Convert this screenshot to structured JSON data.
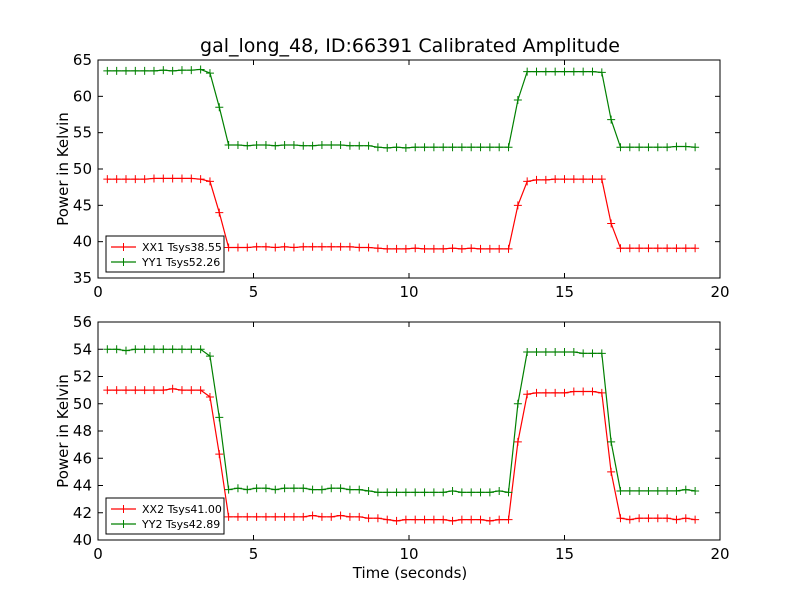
{
  "figure": {
    "title": "gal_long_48, ID:66391 Calibrated Amplitude",
    "xlabel": "Time (seconds)"
  },
  "chart_data": [
    {
      "type": "line",
      "title": "gal_long_48, ID:66391 Calibrated Amplitude",
      "xlabel": "",
      "ylabel": "Power in Kelvin",
      "xlim": [
        0,
        20
      ],
      "ylim": [
        35,
        65
      ],
      "xticks": [
        0,
        5,
        10,
        15,
        20
      ],
      "yticks": [
        35,
        40,
        45,
        50,
        55,
        60,
        65
      ],
      "legend": "lower-left",
      "grid": false,
      "x": [
        0.3,
        0.6,
        0.9,
        1.2,
        1.5,
        1.8,
        2.1,
        2.4,
        2.7,
        3.0,
        3.3,
        3.6,
        3.9,
        4.2,
        4.5,
        4.8,
        5.1,
        5.4,
        5.7,
        6.0,
        6.3,
        6.6,
        6.9,
        7.2,
        7.5,
        7.8,
        8.1,
        8.4,
        8.7,
        9.0,
        9.3,
        9.6,
        9.9,
        10.2,
        10.5,
        10.8,
        11.1,
        11.4,
        11.7,
        12.0,
        12.3,
        12.6,
        12.9,
        13.2,
        13.5,
        13.8,
        14.1,
        14.4,
        14.7,
        15.0,
        15.3,
        15.6,
        15.9,
        16.2,
        16.5,
        16.8,
        17.1,
        17.4,
        17.7,
        18.0,
        18.3,
        18.6,
        18.9,
        19.2
      ],
      "series": [
        {
          "name": "XX1 Tsys38.55",
          "color": "#ff0000",
          "values": [
            48.6,
            48.6,
            48.6,
            48.6,
            48.6,
            48.7,
            48.7,
            48.7,
            48.7,
            48.7,
            48.6,
            48.3,
            44.0,
            39.2,
            39.2,
            39.2,
            39.3,
            39.3,
            39.2,
            39.3,
            39.2,
            39.3,
            39.3,
            39.3,
            39.3,
            39.3,
            39.3,
            39.2,
            39.2,
            39.1,
            39.0,
            39.0,
            39.0,
            39.1,
            39.0,
            39.0,
            39.0,
            39.1,
            39.0,
            39.1,
            39.0,
            39.0,
            39.0,
            39.0,
            45.0,
            48.3,
            48.5,
            48.5,
            48.6,
            48.6,
            48.6,
            48.6,
            48.6,
            48.6,
            42.5,
            39.1,
            39.1,
            39.1,
            39.1,
            39.1,
            39.1,
            39.1,
            39.1,
            39.1
          ]
        },
        {
          "name": "YY1 Tsys52.26",
          "color": "#008000",
          "values": [
            63.5,
            63.5,
            63.5,
            63.5,
            63.5,
            63.5,
            63.6,
            63.5,
            63.6,
            63.6,
            63.7,
            63.2,
            58.5,
            53.3,
            53.3,
            53.2,
            53.3,
            53.3,
            53.2,
            53.3,
            53.3,
            53.2,
            53.2,
            53.3,
            53.3,
            53.3,
            53.2,
            53.2,
            53.2,
            53.0,
            52.9,
            53.0,
            52.9,
            53.0,
            53.0,
            53.0,
            53.0,
            53.0,
            53.0,
            53.0,
            53.0,
            53.0,
            53.0,
            53.0,
            59.5,
            63.4,
            63.4,
            63.4,
            63.4,
            63.4,
            63.4,
            63.4,
            63.4,
            63.3,
            56.8,
            53.0,
            53.0,
            53.0,
            53.0,
            53.0,
            53.0,
            53.1,
            53.1,
            53.0
          ]
        }
      ]
    },
    {
      "type": "line",
      "title": "",
      "xlabel": "Time (seconds)",
      "ylabel": "Power in Kelvin",
      "xlim": [
        0,
        20
      ],
      "ylim": [
        40,
        56
      ],
      "xticks": [
        0,
        5,
        10,
        15,
        20
      ],
      "yticks": [
        40,
        42,
        44,
        46,
        48,
        50,
        52,
        54,
        56
      ],
      "legend": "lower-left",
      "grid": false,
      "x": [
        0.3,
        0.6,
        0.9,
        1.2,
        1.5,
        1.8,
        2.1,
        2.4,
        2.7,
        3.0,
        3.3,
        3.6,
        3.9,
        4.2,
        4.5,
        4.8,
        5.1,
        5.4,
        5.7,
        6.0,
        6.3,
        6.6,
        6.9,
        7.2,
        7.5,
        7.8,
        8.1,
        8.4,
        8.7,
        9.0,
        9.3,
        9.6,
        9.9,
        10.2,
        10.5,
        10.8,
        11.1,
        11.4,
        11.7,
        12.0,
        12.3,
        12.6,
        12.9,
        13.2,
        13.5,
        13.8,
        14.1,
        14.4,
        14.7,
        15.0,
        15.3,
        15.6,
        15.9,
        16.2,
        16.5,
        16.8,
        17.1,
        17.4,
        17.7,
        18.0,
        18.3,
        18.6,
        18.9,
        19.2
      ],
      "series": [
        {
          "name": "XX2 Tsys41.00",
          "color": "#ff0000",
          "values": [
            51.0,
            51.0,
            51.0,
            51.0,
            51.0,
            51.0,
            51.0,
            51.1,
            51.0,
            51.0,
            51.0,
            50.5,
            46.3,
            41.7,
            41.7,
            41.7,
            41.7,
            41.7,
            41.7,
            41.7,
            41.7,
            41.7,
            41.8,
            41.7,
            41.7,
            41.8,
            41.7,
            41.7,
            41.6,
            41.6,
            41.5,
            41.4,
            41.5,
            41.5,
            41.5,
            41.5,
            41.5,
            41.4,
            41.5,
            41.5,
            41.5,
            41.4,
            41.5,
            41.5,
            47.2,
            50.7,
            50.8,
            50.8,
            50.8,
            50.8,
            50.9,
            50.9,
            50.9,
            50.8,
            45.0,
            41.6,
            41.5,
            41.6,
            41.6,
            41.6,
            41.6,
            41.5,
            41.6,
            41.5
          ]
        },
        {
          "name": "YY2 Tsys42.89",
          "color": "#008000",
          "values": [
            54.0,
            54.0,
            53.9,
            54.0,
            54.0,
            54.0,
            54.0,
            54.0,
            54.0,
            54.0,
            54.0,
            53.5,
            49.0,
            43.7,
            43.8,
            43.7,
            43.8,
            43.8,
            43.7,
            43.8,
            43.8,
            43.8,
            43.7,
            43.7,
            43.8,
            43.8,
            43.7,
            43.7,
            43.6,
            43.5,
            43.5,
            43.5,
            43.5,
            43.5,
            43.5,
            43.5,
            43.5,
            43.6,
            43.5,
            43.5,
            43.5,
            43.5,
            43.6,
            43.5,
            50.0,
            53.8,
            53.8,
            53.8,
            53.8,
            53.8,
            53.8,
            53.7,
            53.7,
            53.7,
            47.2,
            43.6,
            43.6,
            43.6,
            43.6,
            43.6,
            43.6,
            43.6,
            43.7,
            43.6
          ]
        }
      ]
    }
  ]
}
